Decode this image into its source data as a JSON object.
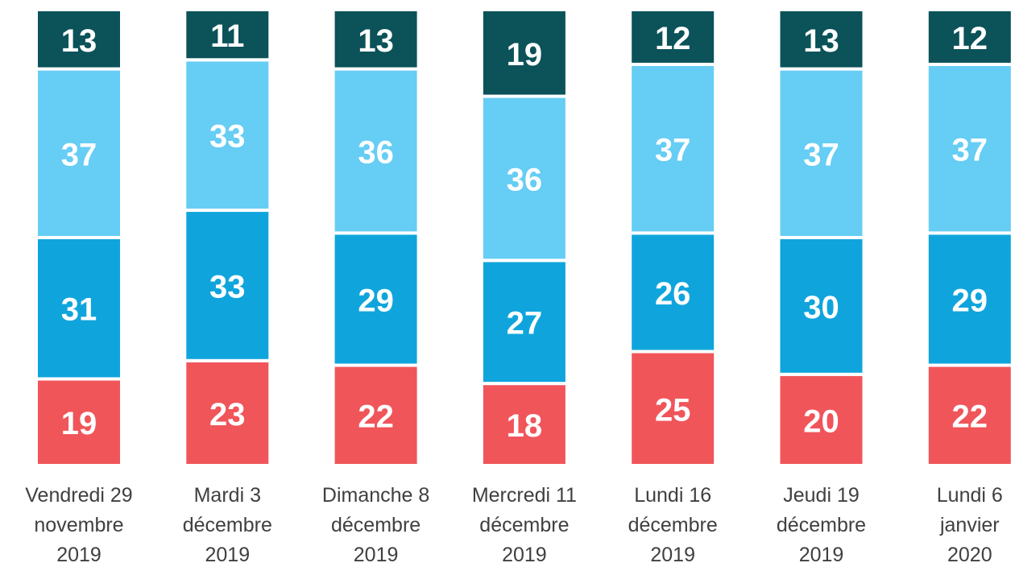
{
  "chart_data": {
    "type": "stacked_bar",
    "categories": [
      "Vendredi 29\nnovembre\n2019",
      "Mardi 3\ndécembre\n2019",
      "Dimanche 8\ndécembre\n2019",
      "Mercredi 11\ndécembre\n2019",
      "Lundi 16\ndécembre\n2019",
      "Jeudi 19\ndécembre\n2019",
      "Lundi 6\njanvier\n2020"
    ],
    "series": [
      {
        "color": "#f0555a",
        "values": [
          19,
          23,
          22,
          18,
          25,
          20,
          22
        ]
      },
      {
        "color": "#0fa5dc",
        "values": [
          31,
          33,
          29,
          27,
          26,
          30,
          29
        ]
      },
      {
        "color": "#66cdf4",
        "values": [
          37,
          33,
          36,
          36,
          37,
          37,
          37
        ]
      },
      {
        "color": "#0b5259",
        "values": [
          13,
          11,
          13,
          19,
          12,
          13,
          12
        ]
      }
    ]
  }
}
